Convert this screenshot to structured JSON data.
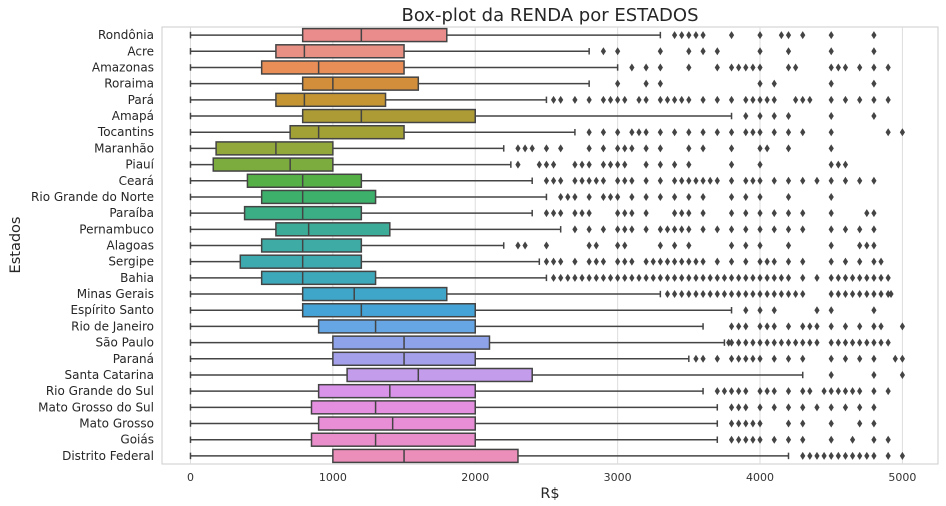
{
  "chart_data": {
    "type": "box",
    "orientation": "horizontal",
    "title": "Box-plot da RENDA por ESTADOS",
    "xlabel": "R$",
    "ylabel": "Estados",
    "xlim": [
      -200,
      5250
    ],
    "xticks": [
      0,
      1000,
      2000,
      3000,
      4000,
      5000
    ],
    "grid": "vertical",
    "categories": [
      {
        "name": "Rondônia",
        "color": "#ea8c8c",
        "stats": [
          0,
          788,
          1200,
          1800,
          3300
        ],
        "outliers": [
          3400,
          3450,
          3500,
          3550,
          3600,
          3800,
          4000,
          4150,
          4200,
          4300,
          4500,
          4800
        ]
      },
      {
        "name": "Acre",
        "color": "#e99085",
        "stats": [
          0,
          600,
          800,
          1500,
          2800
        ],
        "outliers": [
          2900,
          3000,
          3300,
          3500,
          3600,
          3700,
          4000,
          4200,
          4500,
          4800
        ]
      },
      {
        "name": "Amazonas",
        "color": "#e98e57",
        "stats": [
          0,
          500,
          900,
          1500,
          3000
        ],
        "outliers": [
          3100,
          3200,
          3300,
          3500,
          3700,
          3800,
          3850,
          3900,
          3950,
          4000,
          4200,
          4250,
          4500,
          4550,
          4600,
          4700,
          4800,
          4900
        ]
      },
      {
        "name": "Roraima",
        "color": "#d28e3a",
        "stats": [
          0,
          788,
          1000,
          1600,
          2800
        ],
        "outliers": [
          3000,
          3200,
          3300,
          4000,
          4100,
          4500,
          4800
        ]
      },
      {
        "name": "Pará",
        "color": "#c49532",
        "stats": [
          0,
          600,
          800,
          1370,
          2500
        ],
        "outliers": [
          2550,
          2600,
          2700,
          2800,
          2900,
          2950,
          3000,
          3050,
          3150,
          3200,
          3300,
          3350,
          3400,
          3450,
          3500,
          3600,
          3700,
          3800,
          3900,
          3950,
          4000,
          4050,
          4100,
          4250,
          4300,
          4350,
          4500,
          4600,
          4700,
          4800,
          4900
        ]
      },
      {
        "name": "Amapá",
        "color": "#ad9b35",
        "stats": [
          0,
          788,
          1200,
          2000,
          3800
        ],
        "outliers": [
          3900,
          4000,
          4100,
          4200,
          4500,
          4800
        ]
      },
      {
        "name": "Tocantins",
        "color": "#a2a136",
        "stats": [
          0,
          700,
          900,
          1500,
          2700
        ],
        "outliers": [
          2800,
          2900,
          3000,
          3100,
          3150,
          3200,
          3300,
          3400,
          3500,
          3600,
          3700,
          3800,
          3900,
          3950,
          4000,
          4100,
          4200,
          4300,
          4500,
          4900,
          5000
        ]
      },
      {
        "name": "Maranhão",
        "color": "#93a83a",
        "stats": [
          0,
          180,
          600,
          1000,
          2200
        ],
        "outliers": [
          2300,
          2350,
          2400,
          2500,
          2600,
          2800,
          2900,
          3000,
          3050,
          3100,
          3200,
          3300,
          3500,
          3600,
          3800,
          4000,
          4050,
          4200,
          4500
        ]
      },
      {
        "name": "Piauí",
        "color": "#7cac3d",
        "stats": [
          0,
          160,
          700,
          1000,
          2250
        ],
        "outliers": [
          2300,
          2450,
          2500,
          2550,
          2700,
          2750,
          2800,
          2900,
          2950,
          3000,
          3050,
          3200,
          3300,
          3400,
          3500,
          3800,
          4000,
          4500,
          4550,
          4600
        ]
      },
      {
        "name": "Ceará",
        "color": "#55b046",
        "stats": [
          0,
          400,
          788,
          1200,
          2400
        ],
        "outliers": [
          2500,
          2550,
          2600,
          2700,
          2750,
          2800,
          2850,
          2900,
          3000,
          3050,
          3100,
          3200,
          3300,
          3400,
          3450,
          3500,
          3550,
          3600,
          3650,
          3700,
          3800,
          3900,
          3950,
          4000,
          4100,
          4200,
          4300,
          4400,
          4500,
          4600,
          4700,
          4800
        ]
      },
      {
        "name": "Rio Grande do Norte",
        "color": "#3db06b",
        "stats": [
          0,
          500,
          788,
          1300,
          2500
        ],
        "outliers": [
          2600,
          2650,
          2700,
          2800,
          2900,
          2950,
          3000,
          3100,
          3200,
          3300,
          3400,
          3500,
          3600,
          3800,
          3900,
          4000,
          4200,
          4500
        ]
      },
      {
        "name": "Paraíba",
        "color": "#3cae86",
        "stats": [
          0,
          380,
          788,
          1200,
          2400
        ],
        "outliers": [
          2500,
          2550,
          2600,
          2700,
          2750,
          2800,
          3000,
          3050,
          3100,
          3200,
          3400,
          3450,
          3500,
          3600,
          3800,
          3900,
          4000,
          4100,
          4200,
          4300,
          4500,
          4750,
          4800
        ]
      },
      {
        "name": "Pernambuco",
        "color": "#3cac98",
        "stats": [
          0,
          600,
          830,
          1400,
          2600
        ],
        "outliers": [
          2700,
          2800,
          2900,
          3000,
          3050,
          3100,
          3200,
          3300,
          3350,
          3400,
          3450,
          3500,
          3600,
          3700,
          3800,
          3900,
          4000,
          4100,
          4200,
          4300,
          4500,
          4600,
          4700,
          4800
        ]
      },
      {
        "name": "Alagoas",
        "color": "#3eaba5",
        "stats": [
          0,
          500,
          788,
          1200,
          2200
        ],
        "outliers": [
          2300,
          2350,
          2500,
          2800,
          2850,
          3000,
          3050,
          3300,
          3400,
          3500,
          3800,
          3900,
          4000,
          4200,
          4500,
          4700,
          4750,
          4800
        ]
      },
      {
        "name": "Sergipe",
        "color": "#3daab0",
        "stats": [
          0,
          350,
          788,
          1200,
          2450
        ],
        "outliers": [
          2500,
          2550,
          2600,
          2700,
          2800,
          2850,
          2900,
          3000,
          3050,
          3100,
          3200,
          3250,
          3300,
          3350,
          3400,
          3450,
          3500,
          3550,
          3600,
          3700,
          3800,
          3900,
          4000,
          4050,
          4100,
          4200,
          4300,
          4500,
          4600,
          4700,
          4800,
          4850
        ]
      },
      {
        "name": "Bahia",
        "color": "#3ea8bb",
        "stats": [
          0,
          500,
          788,
          1300,
          2500
        ],
        "outliers": [
          2550,
          2600,
          2650,
          2700,
          2750,
          2800,
          2850,
          2900,
          2950,
          3000,
          3050,
          3100,
          3150,
          3200,
          3250,
          3300,
          3350,
          3400,
          3450,
          3500,
          3550,
          3600,
          3650,
          3700,
          3750,
          3800,
          3850,
          3900,
          3950,
          4000,
          4050,
          4100,
          4150,
          4200,
          4300,
          4400,
          4500,
          4550,
          4600,
          4650,
          4700,
          4750,
          4800,
          4850,
          4900
        ]
      },
      {
        "name": "Minas Gerais",
        "color": "#40a6c9",
        "stats": [
          0,
          788,
          1150,
          1800,
          3300
        ],
        "outliers": [
          3350,
          3400,
          3450,
          3500,
          3550,
          3600,
          3650,
          3700,
          3750,
          3800,
          3850,
          3900,
          3950,
          4000,
          4050,
          4100,
          4150,
          4200,
          4250,
          4300,
          4500,
          4550,
          4600,
          4650,
          4700,
          4750,
          4800,
          4850,
          4900,
          4920
        ]
      },
      {
        "name": "Espírito Santo",
        "color": "#45a3d7",
        "stats": [
          0,
          788,
          1200,
          2000,
          3800
        ],
        "outliers": [
          3900,
          4000,
          4100,
          4400,
          4500,
          4800
        ]
      },
      {
        "name": "Rio de Janeiro",
        "color": "#66a6e4",
        "stats": [
          0,
          900,
          1300,
          2000,
          3600
        ],
        "outliers": [
          3800,
          3850,
          3900,
          4000,
          4050,
          4100,
          4200,
          4300,
          4350,
          4400,
          4500,
          4600,
          4700,
          4800,
          4850,
          5000
        ]
      },
      {
        "name": "São Paulo",
        "color": "#8ea2ea",
        "stats": [
          0,
          1000,
          1500,
          2100,
          3750
        ],
        "outliers": [
          3780,
          3800,
          3850,
          3900,
          3950,
          4000,
          4050,
          4100,
          4150,
          4200,
          4250,
          4300,
          4350,
          4400,
          4500,
          4550,
          4600,
          4650,
          4700,
          4750,
          4800,
          4850,
          4900
        ]
      },
      {
        "name": "Paraná",
        "color": "#a4a0ea",
        "stats": [
          0,
          1000,
          1500,
          2000,
          3500
        ],
        "outliers": [
          3550,
          3600,
          3700,
          3800,
          3850,
          3900,
          3950,
          4000,
          4100,
          4200,
          4300,
          4500,
          4600,
          4700,
          4800,
          4950,
          5000
        ]
      },
      {
        "name": "Santa Catarina",
        "color": "#c39ceb",
        "stats": [
          0,
          1100,
          1600,
          2400,
          4300
        ],
        "outliers": [
          4500,
          4800,
          5000
        ]
      },
      {
        "name": "Rio Grande do Sul",
        "color": "#d994ea",
        "stats": [
          0,
          900,
          1400,
          2000,
          3600
        ],
        "outliers": [
          3700,
          3750,
          3800,
          3850,
          3900,
          4000,
          4050,
          4100,
          4200,
          4300,
          4350,
          4450,
          4500,
          4550,
          4600,
          4650,
          4700,
          4800,
          4900
        ]
      },
      {
        "name": "Mato Grosso do Sul",
        "color": "#e48fe0",
        "stats": [
          0,
          850,
          1300,
          2000,
          3700
        ],
        "outliers": [
          3800,
          3850,
          3900,
          4000,
          4100,
          4200,
          4300,
          4400,
          4500,
          4600,
          4700,
          4800
        ]
      },
      {
        "name": "Mato Grosso",
        "color": "#e88ed6",
        "stats": [
          0,
          900,
          1420,
          2000,
          3700
        ],
        "outliers": [
          3800,
          3850,
          3900,
          3950,
          4000,
          4200,
          4300,
          4500,
          4700,
          4800
        ]
      },
      {
        "name": "Goiás",
        "color": "#ea8ecb",
        "stats": [
          0,
          850,
          1300,
          2000,
          3700
        ],
        "outliers": [
          3800,
          3850,
          3900,
          3950,
          4000,
          4100,
          4200,
          4300,
          4500,
          4650,
          4800,
          4900
        ]
      },
      {
        "name": "Distrito Federal",
        "color": "#eb8fba",
        "stats": [
          0,
          1000,
          1500,
          2300,
          4200
        ],
        "outliers": [
          4300,
          4350,
          4400,
          4450,
          4500,
          4550,
          4600,
          4650,
          4700,
          4750,
          4800,
          4900,
          5000
        ]
      }
    ]
  }
}
